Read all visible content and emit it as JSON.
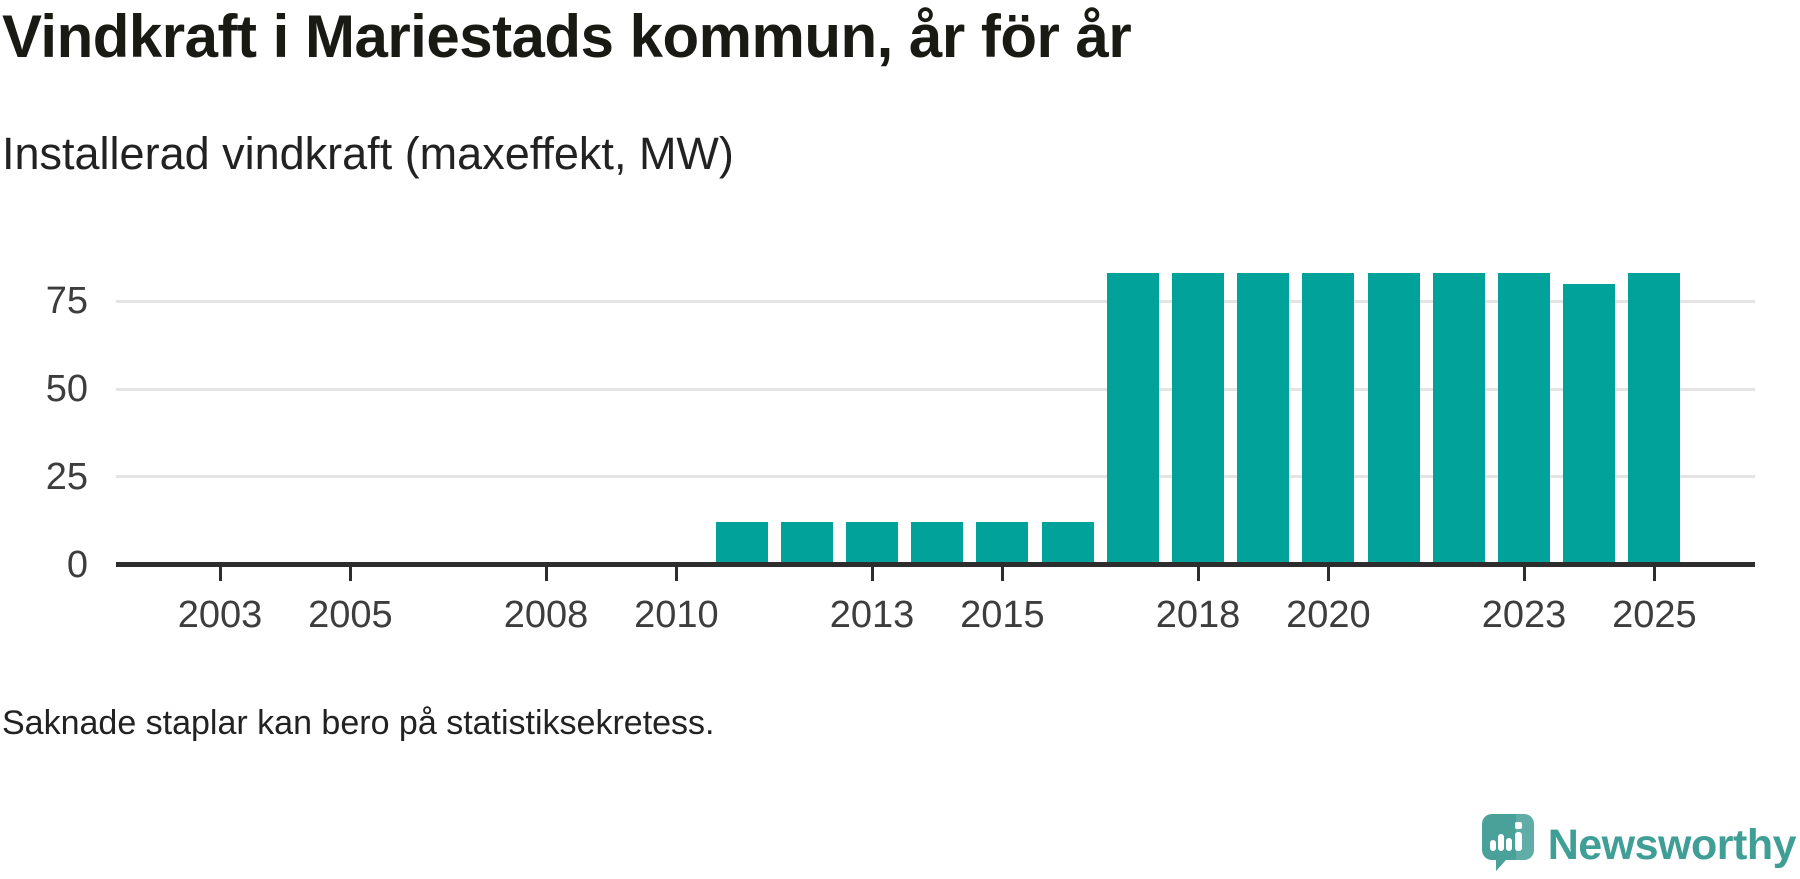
{
  "title": "Vindkraft i Mariestads kommun, år för år",
  "subtitle": "Installerad vindkraft (maxeffekt, MW)",
  "note": "Saknade staplar kan bero på statistiksekretess.",
  "branding": {
    "name": "Newsworthy",
    "logo_color": "#4aa19a",
    "logo_color_light": "#79bdb5",
    "text_color": "#3f9e96"
  },
  "chart_data": {
    "type": "bar",
    "title": "Vindkraft i Mariestads kommun, år för år",
    "subtitle": "Installerad vindkraft (maxeffekt, MW)",
    "unit": "MW",
    "bar_color": "#00a29a",
    "grid": "horizontal",
    "x_domain": [
      2002,
      2026
    ],
    "ylim": [
      0,
      87
    ],
    "y_ticks": [
      0,
      25,
      50,
      75
    ],
    "x_ticks": [
      2003,
      2005,
      2008,
      2010,
      2013,
      2015,
      2018,
      2020,
      2023,
      2025
    ],
    "missing_years": [
      2002,
      2003,
      2004,
      2005,
      2006,
      2007,
      2008,
      2009,
      2010
    ],
    "years": [
      2011,
      2012,
      2013,
      2014,
      2015,
      2016,
      2017,
      2018,
      2019,
      2020,
      2021,
      2022,
      2023,
      2024,
      2025
    ],
    "values": [
      12,
      12,
      12,
      12,
      12,
      12,
      83,
      83,
      83,
      83,
      83,
      83,
      83,
      80,
      83
    ]
  }
}
